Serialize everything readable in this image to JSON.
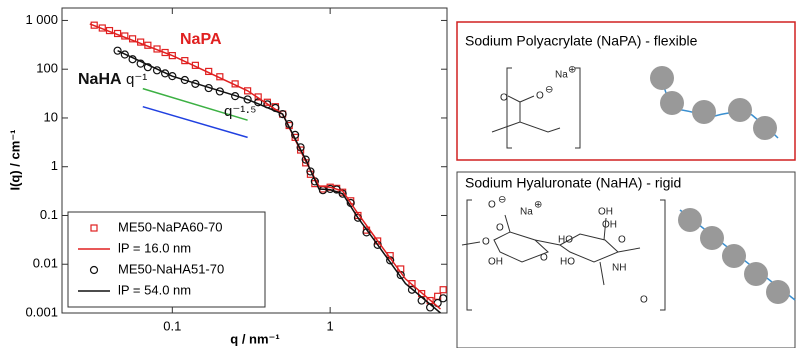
{
  "chart_data": {
    "type": "scatter",
    "xlabel": "q / nm⁻¹",
    "ylabel": "I(q) / cm⁻¹",
    "log_x": true,
    "log_y": true,
    "xlim": [
      0.02,
      5.5
    ],
    "ylim": [
      0.001,
      1800
    ],
    "xticks": [
      0.1,
      1
    ],
    "yticks": [
      0.001,
      0.01,
      0.1,
      1,
      10,
      100,
      {
        "value": 1000,
        "label": "1 000"
      }
    ],
    "legend": "lower left",
    "series": [
      {
        "name": "ME50-NaPA60-70",
        "color": "#e02020",
        "marker": "square",
        "x": [
          0.032,
          0.036,
          0.04,
          0.045,
          0.05,
          0.056,
          0.063,
          0.07,
          0.08,
          0.09,
          0.1,
          0.12,
          0.14,
          0.17,
          0.2,
          0.25,
          0.3,
          0.35,
          0.4,
          0.45,
          0.5,
          0.55,
          0.6,
          0.65,
          0.7,
          0.75,
          0.8,
          0.9,
          1.0,
          1.1,
          1.2,
          1.35,
          1.5,
          1.7,
          2.0,
          2.4,
          2.8,
          3.3,
          3.8,
          4.3,
          4.8,
          5.2
        ],
        "values": [
          800,
          700,
          620,
          540,
          480,
          420,
          360,
          310,
          260,
          220,
          190,
          150,
          120,
          90,
          70,
          50,
          36,
          27,
          21,
          17,
          12,
          7,
          4,
          2.2,
          1.2,
          0.7,
          0.45,
          0.35,
          0.38,
          0.36,
          0.3,
          0.2,
          0.1,
          0.05,
          0.03,
          0.015,
          0.008,
          0.004,
          0.0025,
          0.0018,
          0.0022,
          0.003
        ]
      },
      {
        "name": "lP = 16.0 nm",
        "color": "#e02020",
        "marker": "line",
        "x": [
          0.03,
          0.1,
          0.3,
          0.5,
          0.7,
          0.85,
          1.0,
          1.2,
          1.5,
          2,
          3,
          5
        ],
        "values": [
          850,
          190,
          36,
          12,
          1.3,
          0.4,
          0.38,
          0.32,
          0.11,
          0.03,
          0.005,
          0.0012
        ]
      },
      {
        "name": "ME50-NaHA51-70",
        "color": "#111111",
        "marker": "circle",
        "x": [
          0.045,
          0.05,
          0.056,
          0.063,
          0.07,
          0.08,
          0.09,
          0.1,
          0.12,
          0.14,
          0.17,
          0.2,
          0.25,
          0.3,
          0.35,
          0.4,
          0.45,
          0.5,
          0.55,
          0.6,
          0.65,
          0.7,
          0.75,
          0.8,
          0.9,
          1.0,
          1.1,
          1.2,
          1.35,
          1.5,
          1.7,
          2.0,
          2.4,
          2.8,
          3.3,
          3.8,
          4.3,
          4.8,
          5.2
        ],
        "values": [
          240,
          200,
          160,
          130,
          110,
          95,
          82,
          72,
          60,
          50,
          41,
          35,
          28,
          24,
          21,
          19,
          16,
          12,
          7.5,
          4.5,
          2.5,
          1.4,
          0.8,
          0.5,
          0.33,
          0.35,
          0.34,
          0.28,
          0.18,
          0.09,
          0.045,
          0.025,
          0.012,
          0.006,
          0.003,
          0.0018,
          0.0013,
          0.0016,
          0.002
        ]
      },
      {
        "name": "lP = 54.0 nm",
        "color": "#111111",
        "marker": "line",
        "x": [
          0.045,
          0.1,
          0.3,
          0.5,
          0.7,
          0.85,
          1.0,
          1.2,
          1.5,
          2,
          3,
          5
        ],
        "values": [
          240,
          72,
          24,
          12,
          1.4,
          0.35,
          0.34,
          0.28,
          0.09,
          0.025,
          0.004,
          0.001
        ]
      }
    ],
    "guides": [
      {
        "color": "#3cb043",
        "x": [
          0.065,
          0.3
        ],
        "values": [
          40,
          9
        ]
      },
      {
        "color": "#2040e0",
        "x": [
          0.065,
          0.3
        ],
        "values": [
          17,
          4
        ]
      }
    ],
    "annotations": [
      {
        "text": "NaPA",
        "color": "#e02020"
      },
      {
        "text": "NaHA",
        "color": "#111111"
      },
      {
        "text": "q⁻¹",
        "color": "#111111"
      },
      {
        "text": "q⁻¹·⁵",
        "color": "#111111"
      }
    ]
  },
  "panels": [
    {
      "title": "Sodium Polyacrylate (NaPA) - flexible",
      "labels": [
        "Na",
        "⊕",
        "O",
        "O",
        "⊖"
      ]
    },
    {
      "title": "Sodium Hyaluronate (NaHA) - rigid",
      "labels": [
        "O",
        "⊖",
        "Na",
        "⊕",
        "OH",
        "O",
        "O",
        "HO",
        "OH",
        "O",
        "HO",
        "O",
        "NH",
        "OH",
        "O"
      ]
    }
  ]
}
